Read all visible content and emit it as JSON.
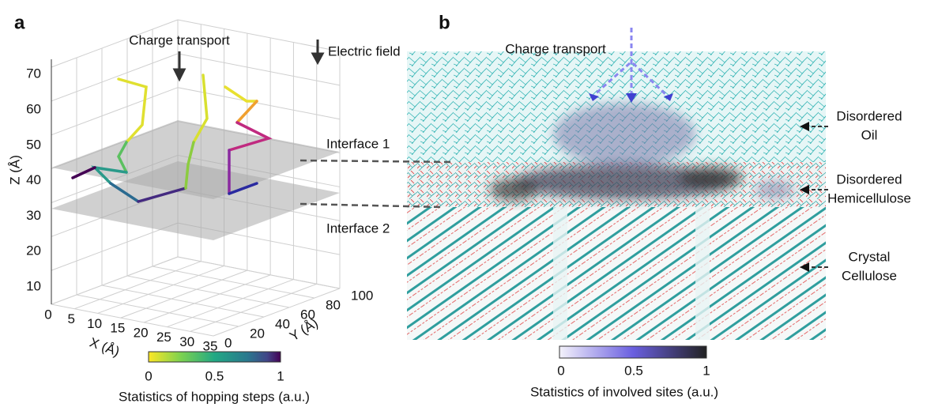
{
  "panel_a": {
    "label": "a",
    "charge_transport": "Charge transport",
    "electric_field": "Electric field",
    "interface_1": "Interface 1",
    "interface_2": "Interface 2",
    "z_axis": {
      "label": "Z (Å)",
      "ticks": [
        10,
        20,
        30,
        40,
        50,
        60,
        70
      ]
    },
    "x_axis": {
      "label": "X (Å)",
      "ticks": [
        0,
        5,
        10,
        15,
        20,
        25,
        30,
        35
      ]
    },
    "y_axis": {
      "label": "Y (Å)",
      "ticks": [
        0,
        20,
        40,
        60,
        80,
        100
      ]
    },
    "colorbar": {
      "ticks": [
        0,
        0.5,
        1
      ],
      "label": "Statistics of hopping steps (a.u.)"
    }
  },
  "panel_b": {
    "label": "b",
    "charge_transport": "Charge transport",
    "regions": [
      {
        "lines": [
          "Disordered",
          "Oil"
        ]
      },
      {
        "lines": [
          "Disordered",
          "Hemicellulose"
        ]
      },
      {
        "lines": [
          "Crystal",
          "Cellulose"
        ]
      }
    ],
    "colorbar": {
      "ticks": [
        0,
        0.5,
        1
      ],
      "label": "Statistics of involved sites (a.u.)"
    }
  }
}
